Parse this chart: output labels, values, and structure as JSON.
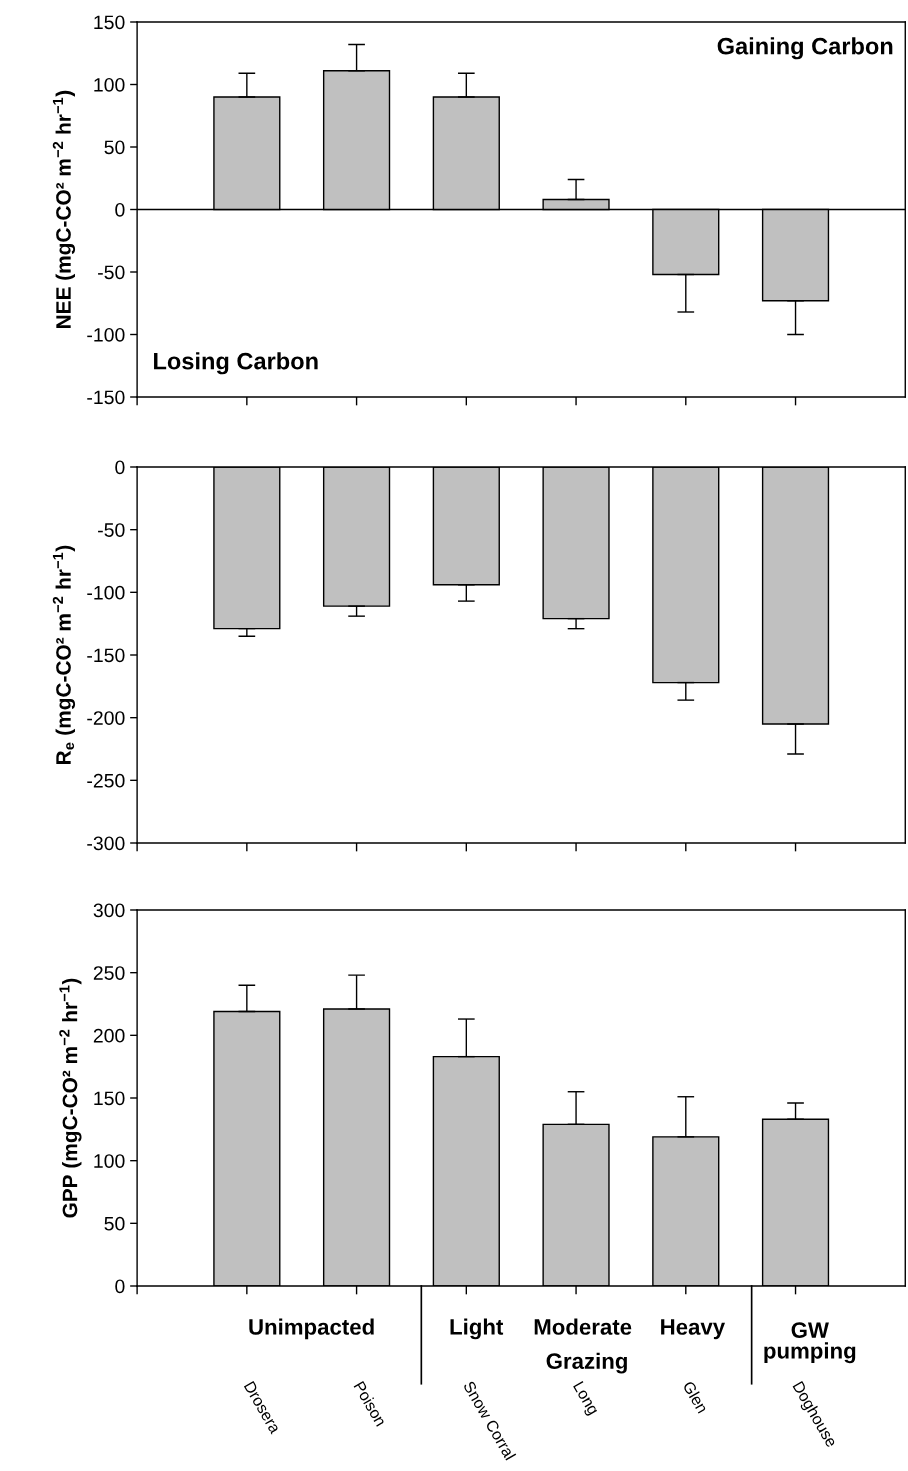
{
  "chart_data": [
    {
      "type": "bar",
      "ylabel": "NEE (mgC-CO² m$^{−2}$ hr$^{−1}$)",
      "categories": [
        null,
        null,
        null,
        null,
        null,
        null
      ],
      "values": [
        90,
        111,
        90,
        8,
        -52,
        -73
      ],
      "color": "#c0c0c0",
      "errors": [
        [
          90,
          109
        ],
        [
          111,
          132
        ],
        [
          90,
          109
        ],
        [
          8,
          24
        ],
        [
          -82,
          -52
        ],
        [
          -100,
          -73
        ]
      ],
      "ylim": [
        -150,
        150
      ],
      "yticks": [
        -150,
        -100,
        -50,
        0,
        50,
        100,
        150
      ],
      "tick_labels": "y",
      "grid": false,
      "ref_lines": [
        {
          "axis": "y",
          "value": 0
        }
      ],
      "annotations": [
        "Gaining Carbon",
        "Losing Carbon"
      ]
    },
    {
      "type": "bar",
      "ylabel": "R$_{e}$ (mgC-CO² m$^{−2}$ hr$^{−1}$)",
      "categories": [
        null,
        null,
        null,
        null,
        null,
        null
      ],
      "values": [
        -129,
        -111,
        -94,
        -121,
        -172,
        -205
      ],
      "color": "#c0c0c0",
      "errors": [
        [
          -135,
          -129
        ],
        [
          -119,
          -111
        ],
        [
          -107,
          -94
        ],
        [
          -129,
          -121
        ],
        [
          -186,
          -172
        ],
        [
          -229,
          -205
        ]
      ],
      "ylim": [
        -300,
        0
      ],
      "yticks": [
        -300,
        -250,
        -200,
        -150,
        -100,
        -50,
        0
      ],
      "tick_labels": "y",
      "grid": false
    },
    {
      "type": "bar",
      "ylabel": "GPP (mgC-CO² m$^{−2}$ hr$^{−1}$)",
      "categories": [
        "Drosera",
        "Poison",
        "Snow Corral",
        "Long",
        "Glen",
        "Doghouse"
      ],
      "values": [
        219,
        221,
        183,
        129,
        119,
        133
      ],
      "color": "#c0c0c0",
      "errors": [
        [
          219,
          240
        ],
        [
          221,
          248
        ],
        [
          183,
          213
        ],
        [
          129,
          155
        ],
        [
          119,
          151
        ],
        [
          133,
          146
        ]
      ],
      "ylim": [
        0,
        300
      ],
      "yticks": [
        0,
        50,
        100,
        150,
        200,
        250,
        300
      ],
      "grid": false,
      "annotations": [
        "Unimpacted",
        "Light",
        "Moderate",
        "Heavy",
        "Grazing",
        "GW\npumping"
      ]
    }
  ]
}
